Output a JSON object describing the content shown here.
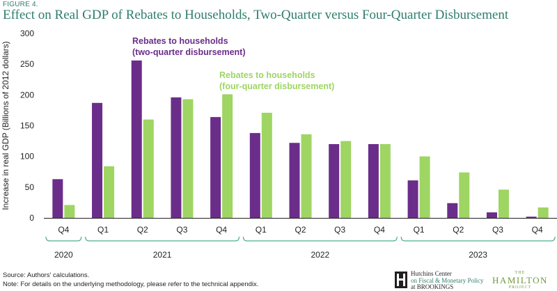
{
  "figure_label": "FIGURE 4.",
  "footer": {
    "source": "Source: Authors' calculations.",
    "note": "Note: For details on the underlying methodology, please refer to the technical appendix."
  },
  "logos": {
    "hutchins_line1": "Hutchins Center",
    "hutchins_line2": "on Fiscal & Monetary Policy",
    "hutchins_line3": "at BROOKINGS",
    "hamilton_top": "THE",
    "hamilton_main": "HAMILTON",
    "hamilton_bottom": "PROJECT"
  },
  "colors": {
    "two_quarter": "#6b2d8a",
    "four_quarter": "#9ed563",
    "title": "#2e7d6b",
    "axis": "#231f20",
    "year_bracket": "#4caf91"
  },
  "chart_data": {
    "type": "bar",
    "title": "Effect on Real GDP of Rebates to Households, Two-Quarter versus Four-Quarter Disbursement",
    "xlabel": "",
    "ylabel": "Increase in real GDP (Billions of 2012 dollars)",
    "ylim": [
      0,
      300
    ],
    "yticks": [
      0,
      50,
      100,
      150,
      200,
      250,
      300
    ],
    "grid": false,
    "categories": [
      "Q4",
      "Q1",
      "Q2",
      "Q3",
      "Q4",
      "Q1",
      "Q2",
      "Q3",
      "Q4",
      "Q1",
      "Q2",
      "Q3",
      "Q4"
    ],
    "year_groups": [
      {
        "label": "2020",
        "start": 0,
        "end": 0
      },
      {
        "label": "2021",
        "start": 1,
        "end": 4
      },
      {
        "label": "2022",
        "start": 5,
        "end": 8
      },
      {
        "label": "2023",
        "start": 9,
        "end": 12
      }
    ],
    "series": [
      {
        "name": "Rebates to households (two-quarter disbursement)",
        "label_lines": [
          "Rebates to households",
          "(two-quarter disbursement)"
        ],
        "color": "#6b2d8a",
        "values": [
          63,
          187,
          256,
          196,
          164,
          138,
          122,
          120,
          120,
          61,
          24,
          9,
          2
        ]
      },
      {
        "name": "Rebates to households (four-quarter disbursement)",
        "label_lines": [
          "Rebates to households",
          "(four-quarter disbursement)"
        ],
        "color": "#9ed563",
        "values": [
          21,
          84,
          160,
          193,
          201,
          171,
          136,
          125,
          120,
          100,
          74,
          46,
          17
        ]
      }
    ]
  }
}
